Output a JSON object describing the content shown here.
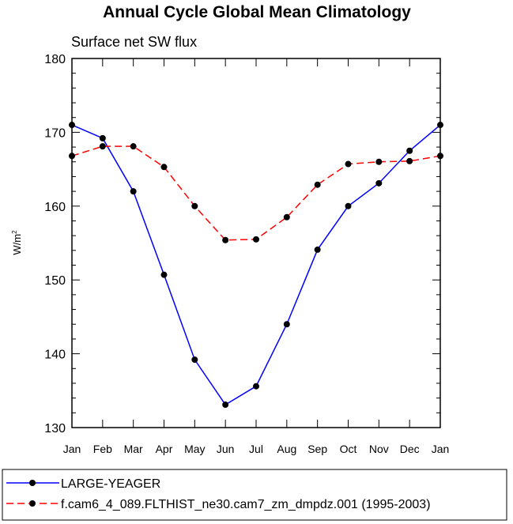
{
  "chart_data": {
    "type": "line",
    "title": "Annual Cycle Global Mean Climatology",
    "subtitle": "Surface net SW flux",
    "ylabel": "W/m",
    "ylabel_sup": "2",
    "xlabel": "",
    "categories": [
      "Jan",
      "Feb",
      "Mar",
      "Apr",
      "May",
      "Jun",
      "Jul",
      "Aug",
      "Sep",
      "Oct",
      "Nov",
      "Dec",
      "Jan"
    ],
    "ylim": [
      130,
      180
    ],
    "yticks": [
      130,
      140,
      150,
      160,
      170,
      180
    ],
    "grid": false,
    "legend_position": "bottom",
    "series": [
      {
        "name": "LARGE-YEAGER",
        "color": "#0000ff",
        "line_style": "solid",
        "marker": "filled-circle",
        "values": [
          171.0,
          169.2,
          162.0,
          150.7,
          139.2,
          133.1,
          135.6,
          144.0,
          154.1,
          160.0,
          163.1,
          167.5,
          171.0
        ]
      },
      {
        "name": "f.cam6_4_089.FLTHIST_ne30.cam7_zm_dmpdz.001 (1995-2003)",
        "color": "#ff0000",
        "line_style": "dashed",
        "marker": "filled-circle",
        "values": [
          166.8,
          168.1,
          168.1,
          165.3,
          160.0,
          155.4,
          155.5,
          158.5,
          162.9,
          165.7,
          166.0,
          166.1,
          166.8
        ]
      }
    ]
  }
}
